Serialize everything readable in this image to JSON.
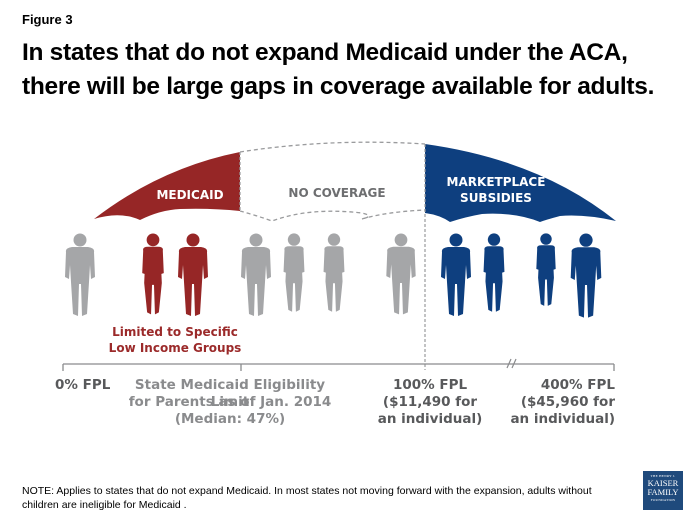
{
  "figure_label": "Figure 3",
  "title": "In states that do not expand Medicaid under the ACA, there will be large gaps in coverage available for adults.",
  "colors": {
    "medicaid": "#962626",
    "marketplace": "#0e3f7f",
    "no_coverage_outline": "#9a9b9d",
    "person_gray": "#a5a6a8",
    "axis": "#8a8b8d"
  },
  "umbrella": {
    "medicaid_label": "MEDICAID",
    "no_coverage_label": "NO COVERAGE",
    "marketplace_label_line1": "MARKETPLACE",
    "marketplace_label_line2": "SUBSIDIES"
  },
  "people": {
    "groups": [
      {
        "group": "uncovered-left",
        "color": "gray",
        "count": 1
      },
      {
        "group": "medicaid",
        "color": "red",
        "count": 2
      },
      {
        "group": "no-coverage",
        "color": "gray",
        "count": 4
      },
      {
        "group": "marketplace",
        "color": "blue",
        "count": 4
      }
    ],
    "medicaid_note_line1": "Limited to Specific",
    "medicaid_note_line2": "Low Income Groups"
  },
  "axis": {
    "tick_0": "0% FPL",
    "state_limit_line1": "State Medicaid Eligibility Limit",
    "state_limit_line2": "for Parents as of Jan. 2014",
    "state_limit_line3": "(Median: 47%)",
    "tick_100_line1": "100% FPL",
    "tick_100_line2": "($11,490 for",
    "tick_100_line3": "an individual)",
    "tick_400_line1": "400% FPL",
    "tick_400_line2": "($45,960 for",
    "tick_400_line3": "an individual)"
  },
  "note": "NOTE: Applies  to states that do not expand Medicaid.  In most states not moving forward with the expansion, adults without children are ineligible for Medicaid .",
  "logo": {
    "line1": "THE HENRY J.",
    "line2": "KAISER",
    "line3": "FAMILY",
    "line4": "FOUNDATION"
  }
}
